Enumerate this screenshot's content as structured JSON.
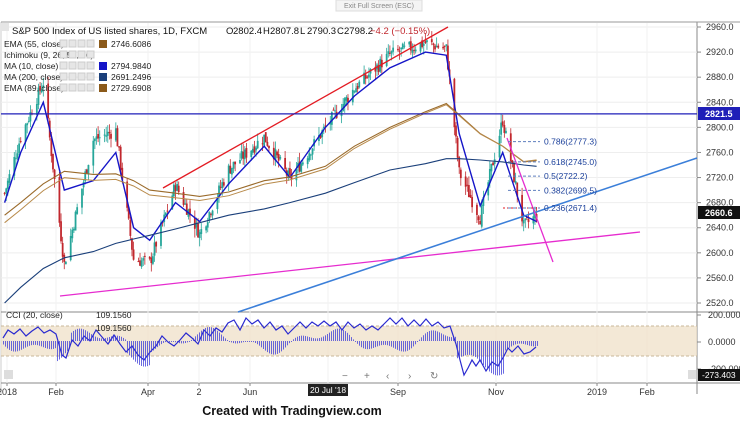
{
  "header": {
    "title": "S&P 500 Index of US listed shares, 1D, FXCM",
    "ohlc": [
      {
        "k": "O",
        "v": "2802.4"
      },
      {
        "k": "H",
        "v": "2807.8"
      },
      {
        "k": "L",
        "v": "2790.3"
      },
      {
        "k": "C",
        "v": "2798.2"
      }
    ],
    "change": "−4.2 (−0.15%)",
    "exit_fullscreen": "Exit Full Screen (ESC)"
  },
  "indicators": [
    {
      "label": "EMA (55, close)",
      "value": "2746.6086",
      "color": "#8b5a1a"
    },
    {
      "label": "Ichimoku (9, 26, 52, 26)",
      "value": "",
      "color": "#999999"
    },
    {
      "label": "MA (10, close)",
      "value": "2794.9840",
      "color": "#1515c8"
    },
    {
      "label": "MA (200, close)",
      "value": "2691.2496",
      "color": "#1a3f7a"
    },
    {
      "label": "EMA (89, close)",
      "value": "2729.6908",
      "color": "#8b5a1a"
    }
  ],
  "fib_levels": [
    {
      "label": "0.786(2777.3)",
      "price": 2777.3
    },
    {
      "label": "0.618(2745.0)",
      "price": 2745.0
    },
    {
      "label": "0.5(2722.2)",
      "price": 2722.2
    },
    {
      "label": "0.382(2699.5)",
      "price": 2699.5
    },
    {
      "label": "0.236(2671.4)",
      "price": 2671.4
    }
  ],
  "price_badges": {
    "horizontal": "2821.5",
    "last": "2660.6"
  },
  "sub_panel": {
    "label": "CCI (20, close)",
    "values": [
      "109.1560",
      "109.1560"
    ],
    "badge": "-273.403",
    "ticks": [
      "200.0000",
      "0.0000",
      "-200.0000"
    ]
  },
  "x_axis_labels": [
    "2018",
    "Feb",
    "Apr",
    "2",
    "Jun",
    "20 Jul '18",
    "Sep",
    "Nov",
    "2019",
    "Feb"
  ],
  "date_badge": "20 Jul '18",
  "footer": "Created with Tradingview.com",
  "colors": {
    "up": "#26a69a",
    "down": "#c1272d",
    "trend_red": "#e31b23",
    "trend_magenta": "#e62ccf",
    "trend_blue": "#3b7fd9",
    "hline": "#1f1fb8"
  },
  "chart_data": {
    "type": "line",
    "title": "S&P 500 Index of US listed shares, 1D, FXCM",
    "x": [
      "2018-01-02",
      "2018-01-12",
      "2018-01-26",
      "2018-02-08",
      "2018-02-26",
      "2018-03-12",
      "2018-03-23",
      "2018-04-02",
      "2018-04-18",
      "2018-05-03",
      "2018-05-21",
      "2018-06-12",
      "2018-06-28",
      "2018-07-20",
      "2018-08-07",
      "2018-08-29",
      "2018-09-20",
      "2018-10-03",
      "2018-10-11",
      "2018-10-24",
      "2018-11-07",
      "2018-11-20",
      "2018-11-28"
    ],
    "series": [
      {
        "name": "close",
        "values": [
          2695,
          2785,
          2872,
          2582,
          2780,
          2795,
          2590,
          2584,
          2708,
          2630,
          2733,
          2785,
          2717,
          2800,
          2862,
          2916,
          2935,
          2925,
          2728,
          2656,
          2812,
          2642,
          2660
        ]
      },
      {
        "name": "MA (10, close)",
        "values": [
          2680,
          2760,
          2840,
          2700,
          2715,
          2760,
          2640,
          2620,
          2680,
          2650,
          2710,
          2770,
          2720,
          2800,
          2850,
          2895,
          2920,
          2915,
          2790,
          2675,
          2760,
          2660,
          2650
        ]
      },
      {
        "name": "EMA (55, close)",
        "values": [
          2660,
          2680,
          2710,
          2730,
          2725,
          2726,
          2715,
          2700,
          2695,
          2690,
          2697,
          2715,
          2721,
          2738,
          2770,
          2800,
          2825,
          2838,
          2820,
          2790,
          2770,
          2745,
          2747
        ]
      },
      {
        "name": "MA (200, close)",
        "values": [
          2520,
          2545,
          2575,
          2592,
          2602,
          2615,
          2622,
          2628,
          2638,
          2648,
          2660,
          2670,
          2680,
          2695,
          2712,
          2732,
          2742,
          2750,
          2750,
          2748,
          2745,
          2740,
          2738
        ]
      }
    ],
    "y_ticks": [
      "2960.0",
      "2920.0",
      "2880.0",
      "2840.0",
      "2800.0",
      "2760.0",
      "2720.0",
      "2680.0",
      "2640.0",
      "2600.0",
      "2560.0",
      "2520.0"
    ],
    "ylim": [
      2505,
      2965
    ],
    "grid": true
  }
}
